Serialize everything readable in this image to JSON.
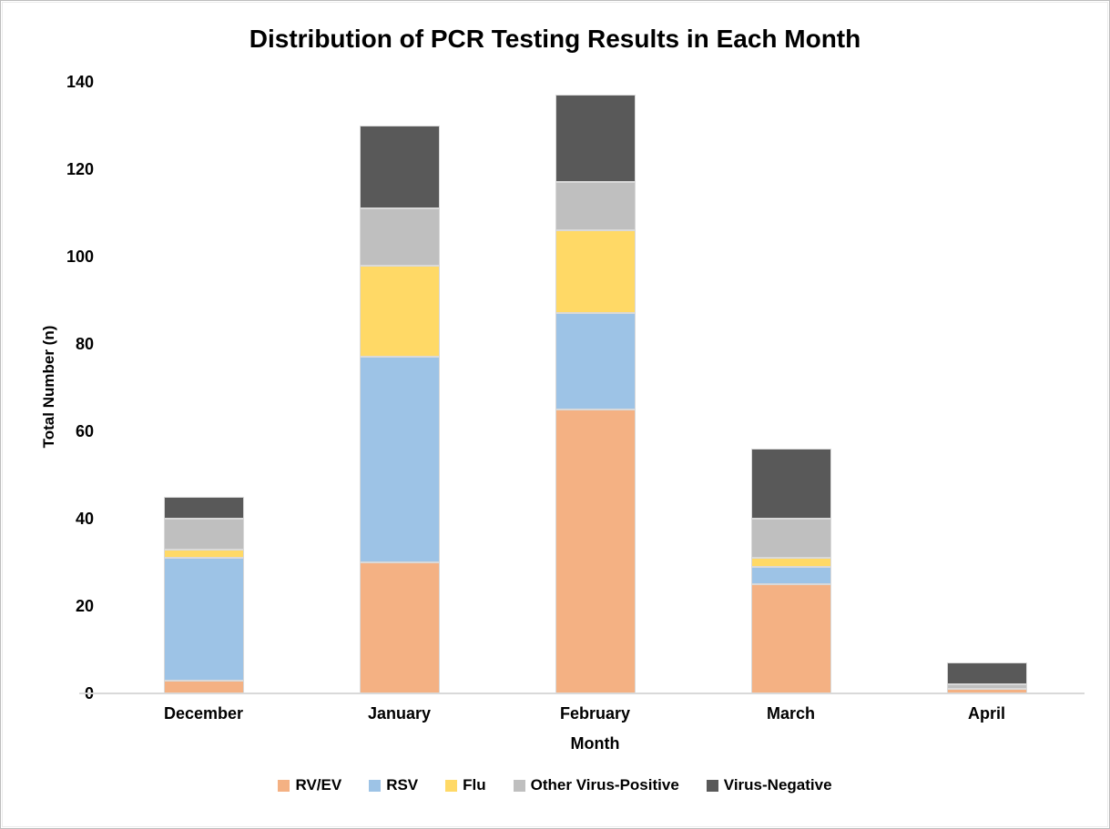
{
  "chart_data": {
    "type": "bar",
    "stacked": true,
    "title": "Distribution of PCR Testing Results in Each Month",
    "xlabel": "Month",
    "ylabel": "Total Number (n)",
    "ylim": [
      0,
      140
    ],
    "yticks": [
      0,
      20,
      40,
      60,
      80,
      100,
      120,
      140
    ],
    "categories": [
      "December",
      "January",
      "February",
      "March",
      "April"
    ],
    "series": [
      {
        "name": "RV/EV",
        "color": "#F4B183",
        "values": [
          3,
          30,
          65,
          25,
          1
        ]
      },
      {
        "name": "RSV",
        "color": "#9DC3E6",
        "values": [
          28,
          47,
          22,
          4,
          0
        ]
      },
      {
        "name": "Flu",
        "color": "#FFD966",
        "values": [
          2,
          21,
          19,
          2,
          0
        ]
      },
      {
        "name": "Other Virus-Positive",
        "color": "#BFBFBF",
        "values": [
          7,
          13,
          11,
          9,
          1
        ]
      },
      {
        "name": "Virus-Negative",
        "color": "#595959",
        "values": [
          5,
          19,
          20,
          16,
          5
        ]
      }
    ],
    "legend_position": "bottom",
    "grid": false,
    "axis_line_color": "#D9D9D9",
    "text_color": "#000000"
  }
}
